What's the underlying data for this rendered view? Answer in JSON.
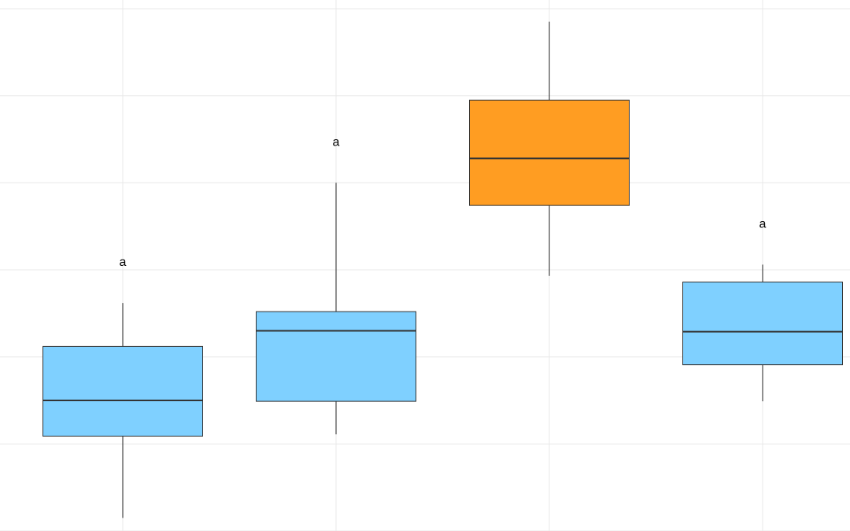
{
  "chart_data": {
    "type": "box",
    "title": "",
    "xlabel": "",
    "ylabel": "",
    "categories": [
      "",
      "",
      "",
      ""
    ],
    "ylim": [
      0,
      6.1
    ],
    "xlim": [
      0,
      4
    ],
    "grid": true,
    "boxes": [
      {
        "whisker_low": 0.15,
        "q1": 1.09,
        "median": 1.5,
        "q3": 2.12,
        "whisker_high": 2.62,
        "color": "#7fd0ff",
        "label": "a"
      },
      {
        "whisker_low": 1.11,
        "q1": 1.49,
        "median": 2.3,
        "q3": 2.52,
        "whisker_high": 4.0,
        "color": "#7fd0ff",
        "label": "a"
      },
      {
        "whisker_low": 2.93,
        "q1": 3.74,
        "median": 4.28,
        "q3": 4.95,
        "whisker_high": 5.85,
        "color": "#ff9d22",
        "label": ""
      },
      {
        "whisker_low": 1.49,
        "q1": 1.91,
        "median": 2.29,
        "q3": 2.86,
        "whisker_high": 3.06,
        "color": "#7fd0ff",
        "label": "a"
      }
    ]
  }
}
